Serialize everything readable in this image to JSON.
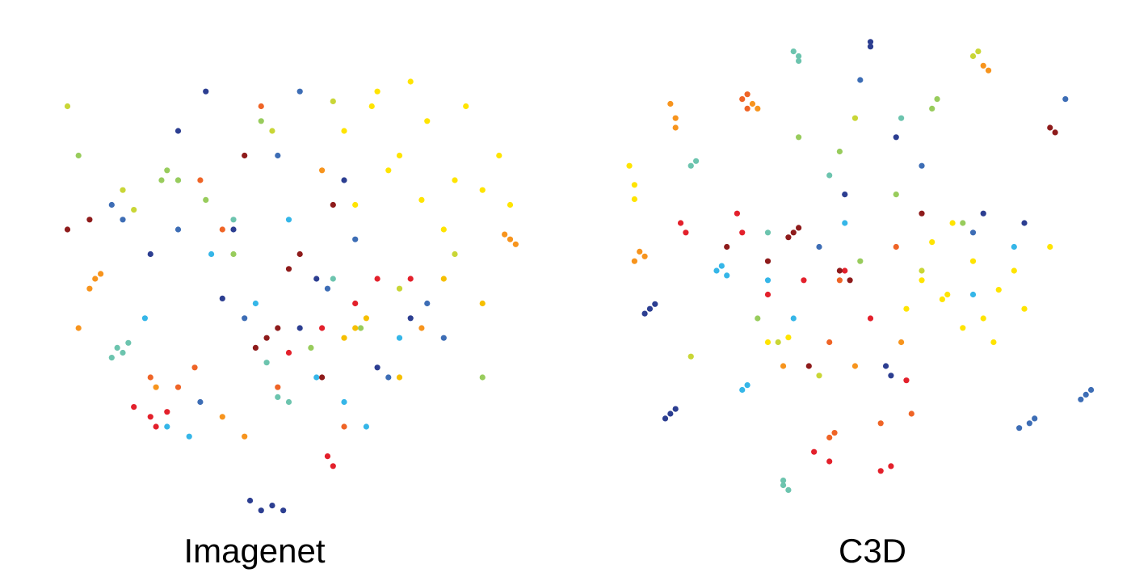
{
  "chart_data": [
    {
      "type": "scatter",
      "title": "Imagenet",
      "xlim": [
        0,
        100
      ],
      "ylim": [
        0,
        100
      ],
      "series": [
        {
          "color": "#2c3e91",
          "x": [
            45,
            47,
            43,
            49,
            30,
            35,
            60,
            72,
            40,
            55,
            25,
            66,
            38,
            52
          ],
          "y": [
            3,
            4,
            5,
            3,
            80,
            88,
            70,
            42,
            60,
            50,
            55,
            32,
            46,
            40
          ]
        },
        {
          "color": "#3d6db5",
          "x": [
            30,
            20,
            57,
            75,
            48,
            68,
            34,
            62,
            42,
            18,
            52,
            78
          ],
          "y": [
            60,
            62,
            48,
            45,
            75,
            30,
            25,
            58,
            42,
            65,
            88,
            38
          ]
        },
        {
          "color": "#35b6e8",
          "x": [
            28,
            32,
            55,
            60,
            44,
            70,
            36,
            50,
            64,
            24
          ],
          "y": [
            20,
            18,
            30,
            25,
            45,
            38,
            55,
            62,
            20,
            42
          ]
        },
        {
          "color": "#6cc4ae",
          "x": [
            19,
            20,
            21,
            18,
            50,
            48,
            40,
            58,
            30,
            46
          ],
          "y": [
            36,
            35,
            37,
            34,
            25,
            26,
            62,
            50,
            70,
            33
          ]
        },
        {
          "color": "#98cc5c",
          "x": [
            28,
            27,
            30,
            63,
            40,
            12,
            85,
            54,
            45,
            35
          ],
          "y": [
            72,
            70,
            70,
            40,
            55,
            75,
            30,
            36,
            82,
            66
          ]
        },
        {
          "color": "#c9d636",
          "x": [
            20,
            22,
            58,
            70,
            47,
            80,
            10
          ],
          "y": [
            68,
            64,
            86,
            48,
            80,
            55,
            85
          ]
        },
        {
          "color": "#ffe400",
          "x": [
            60,
            65,
            70,
            75,
            80,
            85,
            72,
            78,
            68,
            88,
            62,
            82,
            74,
            90,
            66
          ],
          "y": [
            80,
            85,
            75,
            82,
            70,
            68,
            90,
            60,
            72,
            75,
            65,
            85,
            66,
            65,
            88
          ]
        },
        {
          "color": "#f6bf00",
          "x": [
            62,
            60,
            64,
            78,
            70,
            85
          ],
          "y": [
            40,
            38,
            42,
            50,
            30,
            45
          ]
        },
        {
          "color": "#f7941d",
          "x": [
            90,
            91,
            89,
            15,
            14,
            16,
            38,
            42,
            26,
            56,
            74,
            12
          ],
          "y": [
            58,
            57,
            59,
            50,
            48,
            51,
            22,
            18,
            28,
            72,
            40,
            40
          ]
        },
        {
          "color": "#ef6426",
          "x": [
            30,
            33,
            38,
            25,
            48,
            60,
            45,
            34
          ],
          "y": [
            28,
            32,
            60,
            30,
            28,
            20,
            85,
            70
          ]
        },
        {
          "color": "#e3202b",
          "x": [
            25,
            26,
            28,
            22,
            58,
            62,
            66,
            56,
            50,
            72,
            57
          ],
          "y": [
            22,
            20,
            23,
            24,
            12,
            45,
            50,
            40,
            35,
            50,
            14
          ]
        },
        {
          "color": "#8e1b1b",
          "x": [
            46,
            48,
            44,
            50,
            52,
            10,
            14,
            42,
            56,
            58
          ],
          "y": [
            38,
            40,
            36,
            52,
            55,
            60,
            62,
            75,
            30,
            65
          ]
        }
      ]
    },
    {
      "type": "scatter",
      "title": "C3D",
      "xlim": [
        0,
        100
      ],
      "ylim": [
        0,
        100
      ],
      "series": [
        {
          "color": "#2c3e91",
          "x": [
            50,
            50,
            7,
            6,
            8,
            11,
            10,
            12,
            53,
            54,
            72,
            80,
            55,
            45
          ],
          "y": [
            98,
            97,
            42,
            41,
            43,
            20,
            19,
            21,
            30,
            28,
            62,
            60,
            78,
            66
          ]
        },
        {
          "color": "#3d6db5",
          "x": [
            81,
            82,
            79,
            92,
            93,
            91,
            88,
            48,
            40,
            60,
            70
          ],
          "y": [
            18,
            19,
            17,
            24,
            25,
            23,
            86,
            90,
            55,
            72,
            58
          ]
        },
        {
          "color": "#35b6e8",
          "x": [
            20,
            21,
            22,
            25,
            26,
            30,
            35,
            45,
            78,
            70
          ],
          "y": [
            50,
            51,
            49,
            25,
            26,
            48,
            40,
            60,
            55,
            45
          ]
        },
        {
          "color": "#6cc4ae",
          "x": [
            36,
            36,
            35,
            33,
            34,
            33,
            15,
            16,
            30,
            42,
            56
          ],
          "y": [
            95,
            94,
            96,
            5,
            4,
            6,
            72,
            73,
            58,
            70,
            82
          ]
        },
        {
          "color": "#98cc5c",
          "x": [
            62,
            63,
            36,
            44,
            55,
            68,
            28,
            48
          ],
          "y": [
            84,
            86,
            78,
            75,
            66,
            60,
            40,
            52
          ]
        },
        {
          "color": "#c9d636",
          "x": [
            70,
            71,
            47,
            15,
            32,
            40,
            60
          ],
          "y": [
            95,
            96,
            82,
            32,
            35,
            28,
            50
          ]
        },
        {
          "color": "#ffe400",
          "x": [
            3,
            4,
            4,
            60,
            65,
            70,
            72,
            75,
            68,
            62,
            78,
            66,
            74,
            80,
            57,
            85,
            30,
            34,
            64
          ],
          "y": [
            72,
            68,
            65,
            48,
            45,
            52,
            40,
            46,
            38,
            56,
            50,
            60,
            35,
            42,
            42,
            55,
            35,
            36,
            44
          ]
        },
        {
          "color": "#f7941d",
          "x": [
            11,
            12,
            12,
            27,
            28,
            5,
            6,
            4,
            73,
            72,
            47,
            33,
            56
          ],
          "y": [
            85,
            82,
            80,
            85,
            84,
            54,
            53,
            52,
            92,
            93,
            30,
            30,
            35
          ]
        },
        {
          "color": "#ef6426",
          "x": [
            25,
            26,
            26,
            42,
            43,
            42,
            55,
            58,
            52,
            44
          ],
          "y": [
            86,
            84,
            87,
            15,
            16,
            35,
            55,
            20,
            18,
            48
          ]
        },
        {
          "color": "#e3202b",
          "x": [
            13,
            14,
            24,
            25,
            39,
            42,
            52,
            54,
            45,
            30,
            37,
            50,
            57
          ],
          "y": [
            60,
            58,
            62,
            58,
            12,
            10,
            8,
            9,
            50,
            45,
            48,
            40,
            27
          ]
        },
        {
          "color": "#8e1b1b",
          "x": [
            35,
            36,
            34,
            44,
            46,
            38,
            85,
            86,
            60,
            30,
            22
          ],
          "y": [
            58,
            59,
            57,
            50,
            48,
            30,
            80,
            79,
            62,
            52,
            55
          ]
        }
      ]
    }
  ]
}
